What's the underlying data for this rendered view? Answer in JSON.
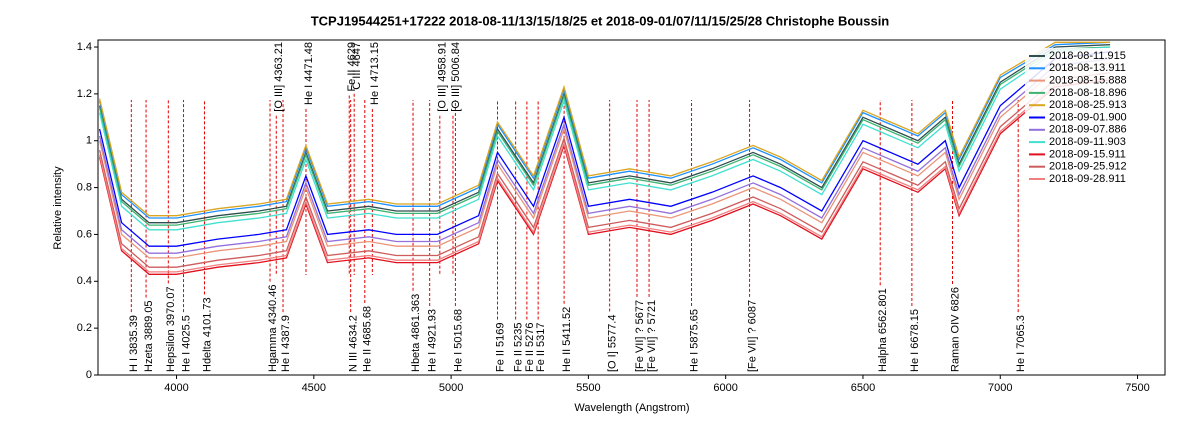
{
  "chart_data": {
    "type": "line",
    "title": "TCPJ19544251+17222  2018-08-11/13/15/18/25 et 2018-09-01/07/11/15/25/28  Christophe Boussin",
    "x_label": "Wavelength (Angstrom)",
    "y_label": "Relative intensity",
    "xlim": [
      3714,
      7600
    ],
    "ylim": [
      0,
      1.43
    ],
    "xticks": [
      4000,
      4500,
      5000,
      5500,
      6000,
      6500,
      7000,
      7500
    ],
    "yticks": [
      0,
      0.2,
      0.4,
      0.6,
      0.8,
      1,
      1.2,
      1.4
    ],
    "legend": "upper right",
    "x": [
      3720,
      3800,
      3900,
      4000,
      4150,
      4300,
      4400,
      4471,
      4550,
      4700,
      4800,
      4950,
      5100,
      5169,
      5300,
      5411,
      5500,
      5650,
      5800,
      5950,
      6100,
      6200,
      6350,
      6500,
      6700,
      6800,
      6850,
      7000,
      7200,
      7400
    ],
    "series": [
      {
        "name": "2018-08-11.915",
        "color": "#2f4f4f",
        "values": [
          1.15,
          0.75,
          0.65,
          0.65,
          0.68,
          0.7,
          0.72,
          0.95,
          0.7,
          0.72,
          0.7,
          0.7,
          0.78,
          1.05,
          0.82,
          1.2,
          0.82,
          0.85,
          0.82,
          0.88,
          0.95,
          0.9,
          0.8,
          1.1,
          1.0,
          1.1,
          0.9,
          1.25,
          1.4,
          1.41
        ]
      },
      {
        "name": "2018-08-13.911",
        "color": "#1e90ff",
        "values": [
          1.17,
          0.77,
          0.67,
          0.67,
          0.7,
          0.72,
          0.74,
          0.97,
          0.72,
          0.74,
          0.72,
          0.72,
          0.8,
          1.07,
          0.84,
          1.22,
          0.84,
          0.87,
          0.84,
          0.9,
          0.97,
          0.92,
          0.82,
          1.12,
          1.02,
          1.12,
          0.92,
          1.27,
          1.41,
          1.42
        ]
      },
      {
        "name": "2018-08-15.888",
        "color": "#e9967a",
        "values": [
          1.0,
          0.6,
          0.5,
          0.5,
          0.53,
          0.55,
          0.57,
          0.8,
          0.55,
          0.57,
          0.55,
          0.55,
          0.63,
          0.9,
          0.67,
          1.05,
          0.67,
          0.7,
          0.67,
          0.73,
          0.8,
          0.75,
          0.65,
          0.95,
          0.85,
          0.95,
          0.75,
          1.1,
          1.3,
          1.33
        ]
      },
      {
        "name": "2018-08-18.896",
        "color": "#3cb371",
        "values": [
          1.14,
          0.74,
          0.64,
          0.64,
          0.67,
          0.69,
          0.71,
          0.94,
          0.69,
          0.71,
          0.69,
          0.69,
          0.77,
          1.04,
          0.81,
          1.19,
          0.81,
          0.84,
          0.81,
          0.87,
          0.94,
          0.89,
          0.79,
          1.09,
          0.99,
          1.09,
          0.89,
          1.24,
          1.39,
          1.4
        ]
      },
      {
        "name": "2018-08-25.913",
        "color": "#daa520",
        "values": [
          1.18,
          0.78,
          0.68,
          0.68,
          0.71,
          0.73,
          0.75,
          0.98,
          0.73,
          0.75,
          0.73,
          0.73,
          0.81,
          1.08,
          0.85,
          1.23,
          0.85,
          0.88,
          0.85,
          0.91,
          0.98,
          0.93,
          0.83,
          1.13,
          1.03,
          1.13,
          0.93,
          1.28,
          1.42,
          1.42
        ]
      },
      {
        "name": "2018-09-01.900",
        "color": "#0000ff",
        "values": [
          1.05,
          0.65,
          0.55,
          0.55,
          0.58,
          0.6,
          0.62,
          0.85,
          0.6,
          0.62,
          0.6,
          0.6,
          0.68,
          0.95,
          0.72,
          1.1,
          0.72,
          0.75,
          0.72,
          0.78,
          0.85,
          0.8,
          0.7,
          1.0,
          0.9,
          1.0,
          0.8,
          1.15,
          1.35,
          1.38
        ]
      },
      {
        "name": "2018-09-07.886",
        "color": "#9370db",
        "values": [
          1.02,
          0.62,
          0.52,
          0.52,
          0.55,
          0.57,
          0.59,
          0.82,
          0.57,
          0.59,
          0.57,
          0.57,
          0.65,
          0.92,
          0.69,
          1.07,
          0.69,
          0.72,
          0.69,
          0.75,
          0.82,
          0.77,
          0.67,
          0.97,
          0.87,
          0.97,
          0.77,
          1.12,
          1.32,
          1.35
        ]
      },
      {
        "name": "2018-09-11.903",
        "color": "#40e0d0",
        "values": [
          1.12,
          0.72,
          0.62,
          0.62,
          0.65,
          0.67,
          0.69,
          0.92,
          0.67,
          0.69,
          0.67,
          0.67,
          0.75,
          1.02,
          0.79,
          1.17,
          0.79,
          0.82,
          0.79,
          0.85,
          0.92,
          0.87,
          0.77,
          1.07,
          0.97,
          1.07,
          0.87,
          1.22,
          1.38,
          1.4
        ]
      },
      {
        "name": "2018-09-15.911",
        "color": "#e0101e",
        "values": [
          0.93,
          0.53,
          0.43,
          0.43,
          0.46,
          0.48,
          0.5,
          0.73,
          0.48,
          0.5,
          0.48,
          0.48,
          0.56,
          0.83,
          0.6,
          0.98,
          0.6,
          0.63,
          0.6,
          0.66,
          0.73,
          0.68,
          0.58,
          0.88,
          0.78,
          0.88,
          0.68,
          1.03,
          1.23,
          1.26
        ]
      },
      {
        "name": "2018-09-25.912",
        "color": "#cd5c5c",
        "values": [
          0.96,
          0.56,
          0.46,
          0.46,
          0.49,
          0.51,
          0.53,
          0.76,
          0.51,
          0.53,
          0.51,
          0.51,
          0.59,
          0.86,
          0.63,
          1.01,
          0.63,
          0.66,
          0.63,
          0.69,
          0.76,
          0.71,
          0.61,
          0.91,
          0.81,
          0.91,
          0.71,
          1.06,
          1.26,
          1.29
        ]
      },
      {
        "name": "2018-09-28.911",
        "color": "#f08080",
        "values": [
          0.94,
          0.54,
          0.44,
          0.44,
          0.47,
          0.49,
          0.51,
          0.74,
          0.49,
          0.51,
          0.49,
          0.49,
          0.57,
          0.84,
          0.61,
          0.99,
          0.61,
          0.64,
          0.61,
          0.67,
          0.74,
          0.69,
          0.59,
          0.89,
          0.79,
          0.89,
          0.69,
          1.04,
          1.24,
          1.27
        ]
      }
    ],
    "annotations_bottom": [
      {
        "label": "H I 3835.39",
        "x": 3835.39
      },
      {
        "label": "Hzeta 3889.05",
        "x": 3889.05
      },
      {
        "label": "Hepsilon 3970.07",
        "x": 3970.07
      },
      {
        "label": "He I 4025.5",
        "x": 4025.5
      },
      {
        "label": "Hdelta 4101.73",
        "x": 4101.73
      },
      {
        "label": "Hgamma 4340.46",
        "x": 4340.46
      },
      {
        "label": "He I 4387.9",
        "x": 4387.9
      },
      {
        "label": "N III 4634.2",
        "x": 4634.2
      },
      {
        "label": "He II 4685.68",
        "x": 4685.68
      },
      {
        "label": "Hbeta 4861.363",
        "x": 4861.363
      },
      {
        "label": "He I 4921.93",
        "x": 4921.93
      },
      {
        "label": "He I 5015.68",
        "x": 5015.68
      },
      {
        "label": "Fe II 5169",
        "x": 5169
      },
      {
        "label": "Fe II 5235",
        "x": 5235
      },
      {
        "label": "Fe II 5276",
        "x": 5276
      },
      {
        "label": "Fe II 5317",
        "x": 5317
      },
      {
        "label": "He II 5411.52",
        "x": 5411.52
      },
      {
        "label": "[O I] 5577.4",
        "x": 5577.4
      },
      {
        "label": "[Fe VII] ? 5677",
        "x": 5677
      },
      {
        "label": "[Fe VII] ? 5721",
        "x": 5721
      },
      {
        "label": "He I 5875.65",
        "x": 5875.65
      },
      {
        "label": "[Fe VII] ? 6087",
        "x": 6087
      },
      {
        "label": "Halpha 6562.801",
        "x": 6562.801
      },
      {
        "label": "He I 6678.15",
        "x": 6678.15
      },
      {
        "label": "Raman OIV 6826",
        "x": 6826
      },
      {
        "label": "He I 7065.3",
        "x": 7065.3
      }
    ],
    "annotations_top": [
      {
        "label": "[O III] 4363.21",
        "x": 4363.21
      },
      {
        "label": "He I 4471.48",
        "x": 4471.48
      },
      {
        "label": "Fe II 4629",
        "x": 4629
      },
      {
        "label": "C III 4647",
        "x": 4647
      },
      {
        "label": "He I 4713.15",
        "x": 4713.15
      },
      {
        "label": "[O III] 4958.91",
        "x": 4958.91
      },
      {
        "label": "[O III] 5006.84",
        "x": 5006.84
      }
    ]
  }
}
